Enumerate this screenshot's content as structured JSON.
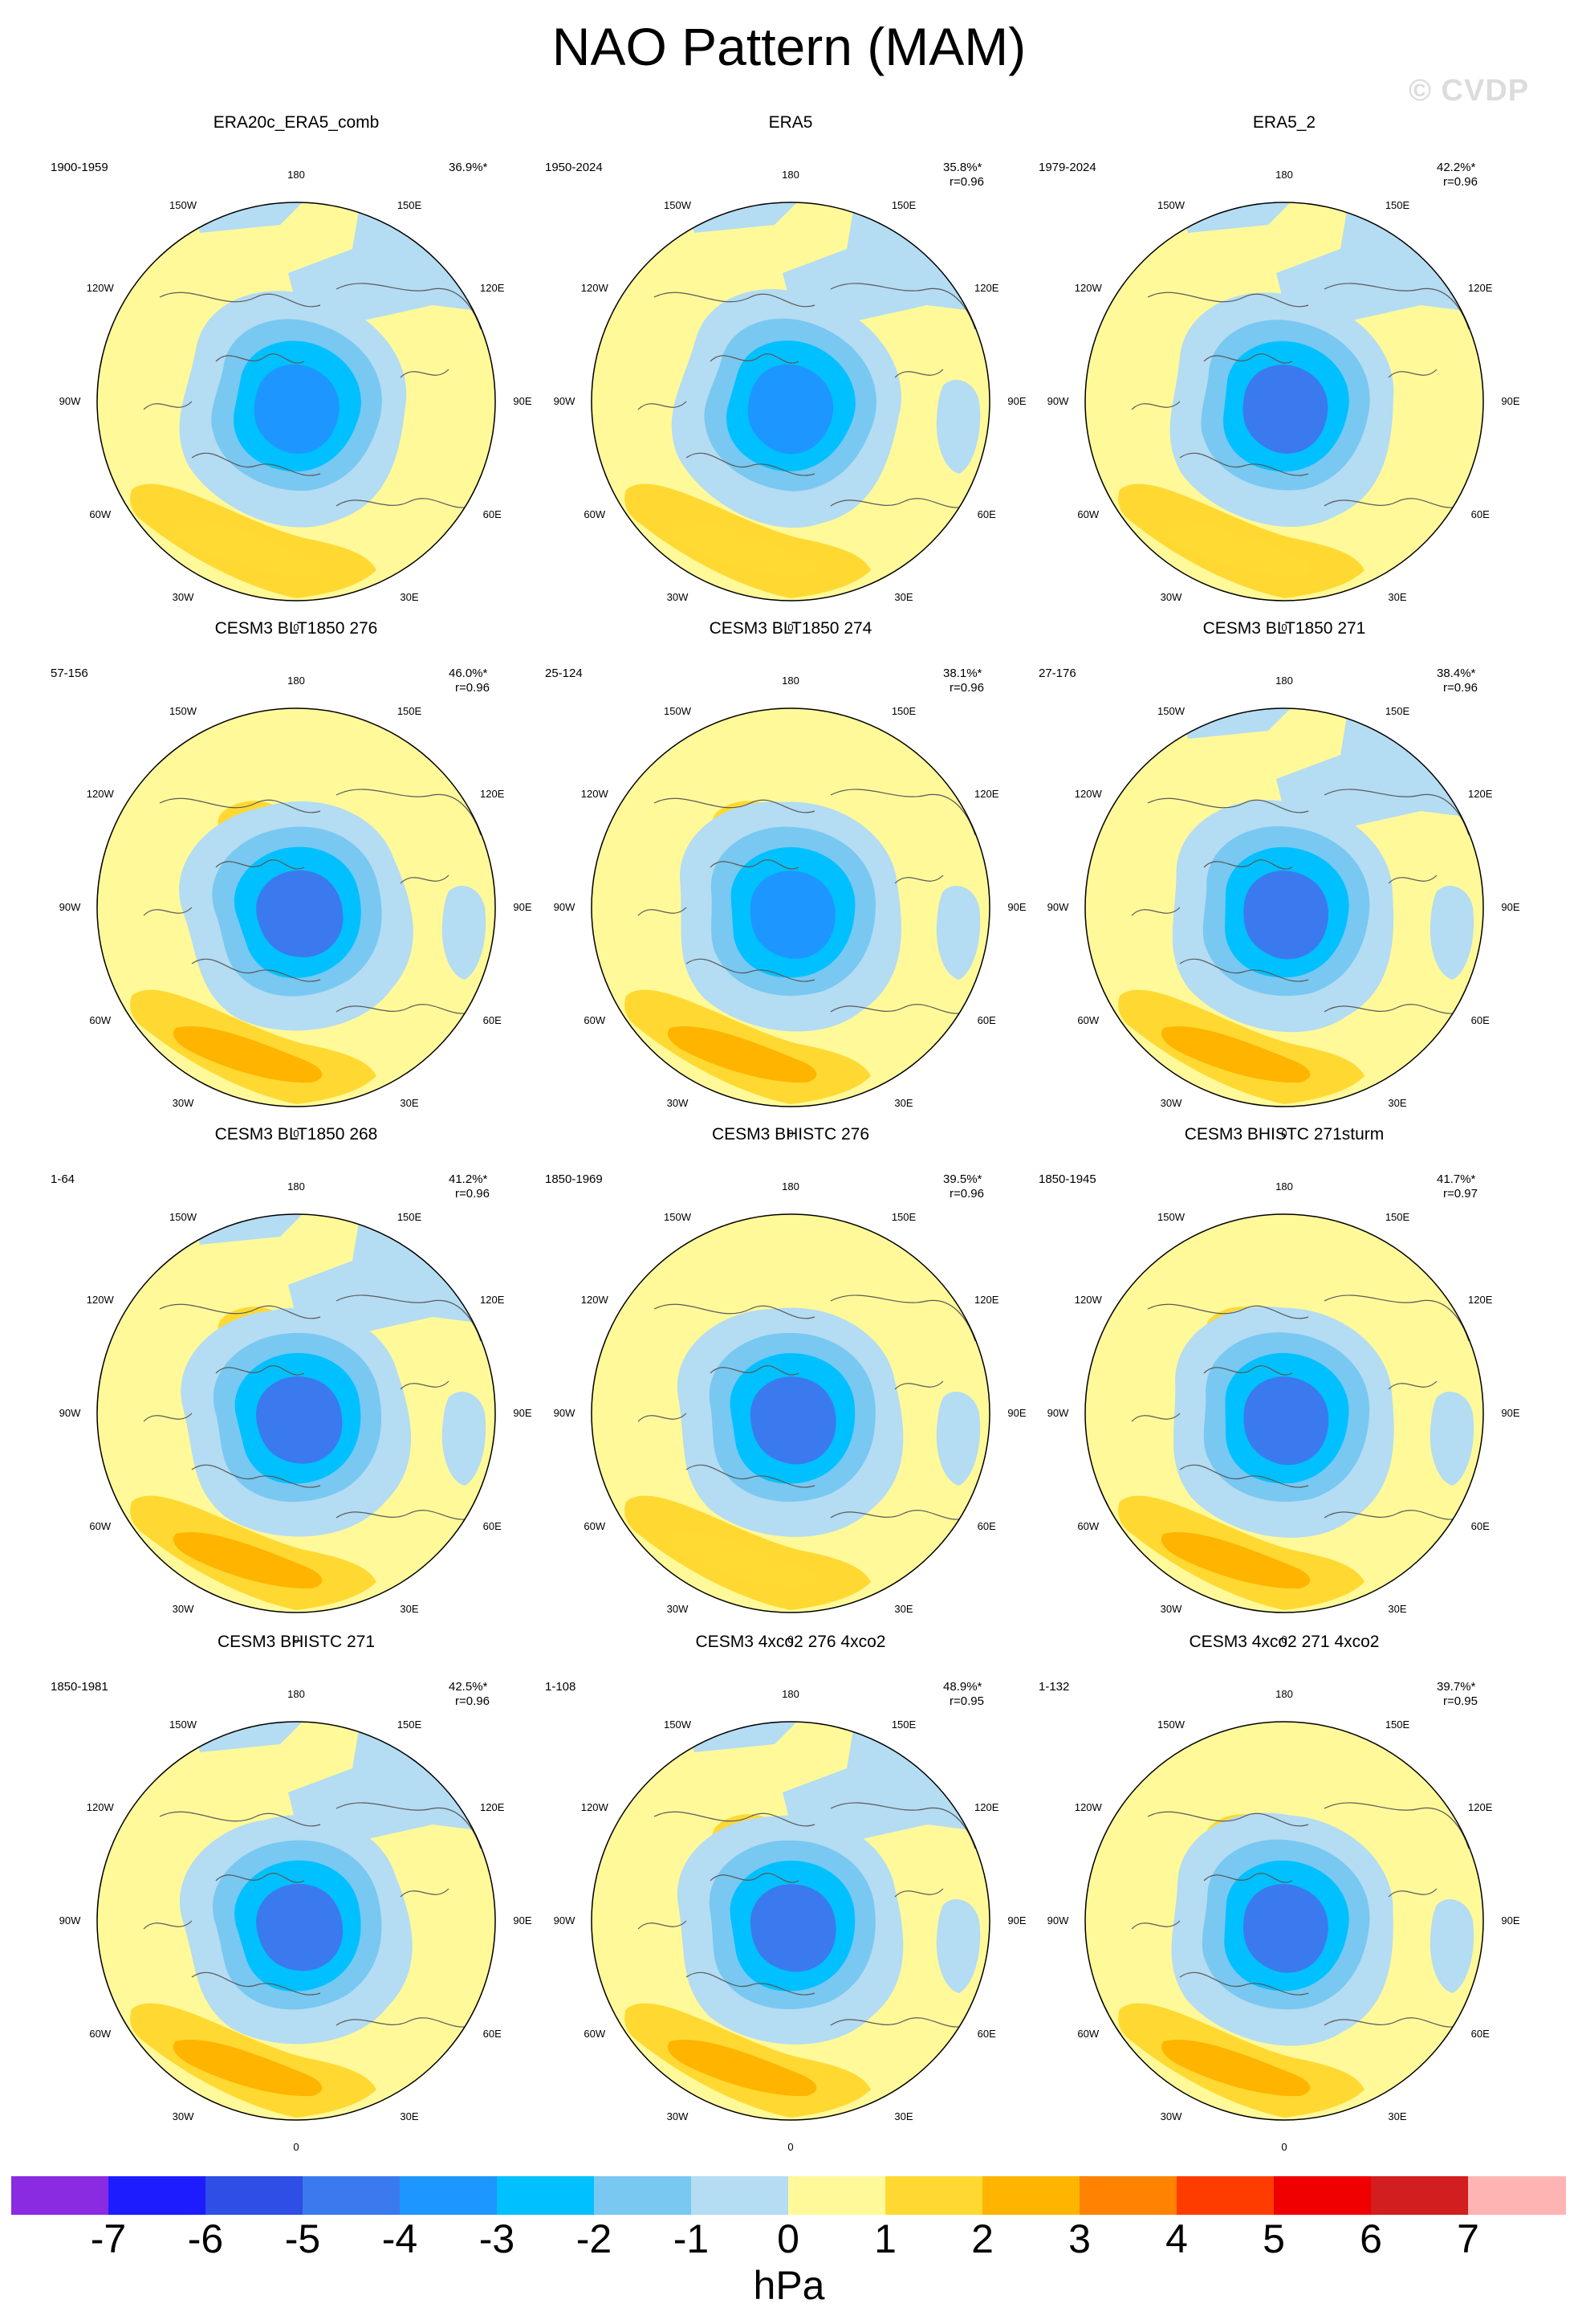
{
  "title": "NAO Pattern (MAM)",
  "watermark": "© CVDP",
  "longitude_labels": [
    "180",
    "150E",
    "120E",
    "90E",
    "60E",
    "30E",
    "0",
    "30W",
    "60W",
    "90W",
    "120W",
    "150W"
  ],
  "panels": [
    {
      "title": "ERA20c_ERA5_comb",
      "years": "1900-1959",
      "pct": "36.9%*",
      "corr": ""
    },
    {
      "title": "ERA5",
      "years": "1950-2024",
      "pct": "35.8%*",
      "corr": "r=0.96"
    },
    {
      "title": "ERA5_2",
      "years": "1979-2024",
      "pct": "42.2%*",
      "corr": "r=0.96"
    },
    {
      "title": "CESM3 BLT1850 276",
      "years": "57-156",
      "pct": "46.0%*",
      "corr": "r=0.96"
    },
    {
      "title": "CESM3 BLT1850 274",
      "years": "25-124",
      "pct": "38.1%*",
      "corr": "r=0.96"
    },
    {
      "title": "CESM3 BLT1850 271",
      "years": "27-176",
      "pct": "38.4%*",
      "corr": "r=0.96"
    },
    {
      "title": "CESM3 BLT1850 268",
      "years": "1-64",
      "pct": "41.2%*",
      "corr": "r=0.96"
    },
    {
      "title": "CESM3 BHISTC 276",
      "years": "1850-1969",
      "pct": "39.5%*",
      "corr": "r=0.96"
    },
    {
      "title": "CESM3 BHISTC 271sturm",
      "years": "1850-1945",
      "pct": "41.7%*",
      "corr": "r=0.97"
    },
    {
      "title": "CESM3 BHISTC 271",
      "years": "1850-1981",
      "pct": "42.5%*",
      "corr": "r=0.96"
    },
    {
      "title": "CESM3 4xco2 276 4xco2",
      "years": "1-108",
      "pct": "48.9%*",
      "corr": "r=0.95"
    },
    {
      "title": "CESM3 4xco2 271 4xco2",
      "years": "1-132",
      "pct": "39.7%*",
      "corr": "r=0.95"
    }
  ],
  "colorbar": {
    "colors": [
      "#8a2be2",
      "#1c1cff",
      "#2e4ee6",
      "#3a7aee",
      "#1e96ff",
      "#00c0ff",
      "#78c8f2",
      "#b4dcf2",
      "#fff99a",
      "#ffd932",
      "#ffb400",
      "#ff8200",
      "#ff3c00",
      "#f00000",
      "#d21e1e",
      "#ffb4b4"
    ],
    "ticks": [
      "-7",
      "-6",
      "-5",
      "-4",
      "-3",
      "-2",
      "-1",
      "0",
      "1",
      "2",
      "3",
      "4",
      "5",
      "6",
      "7"
    ],
    "unit": "hPa"
  }
}
